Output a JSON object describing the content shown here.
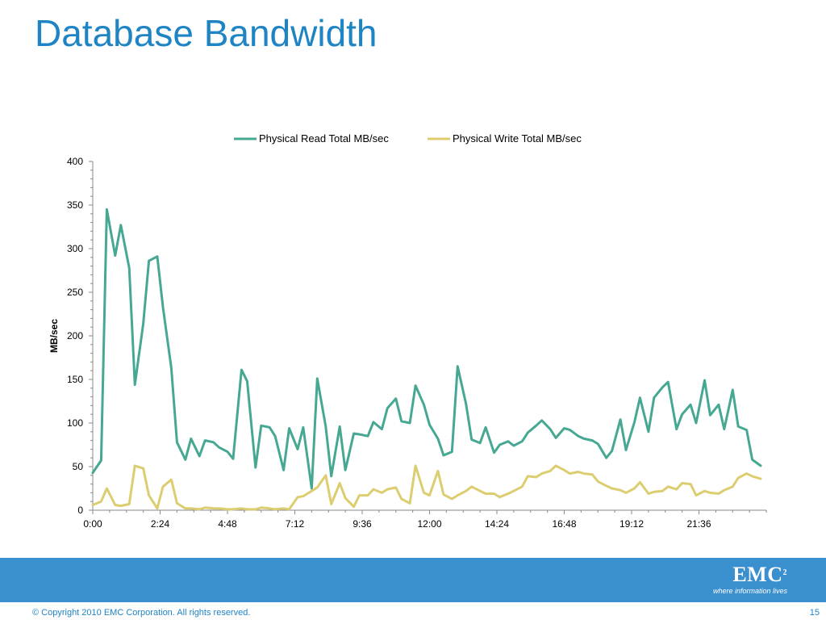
{
  "page": {
    "title": "Database Bandwidth",
    "copyright": "© Copyright 2010  EMC Corporation.  All rights reserved.",
    "page_number": "15"
  },
  "logo": {
    "brand": "EMC",
    "superscript": "2",
    "tagline": "where information lives"
  },
  "colors": {
    "title": "#1f84c4",
    "footer_band": "#3a8fcf",
    "read_series": "#46a892",
    "write_series": "#dccd70"
  },
  "chart_data": {
    "type": "line",
    "title": "",
    "xlabel": "",
    "ylabel": "MB/sec",
    "ylim": [
      0,
      400
    ],
    "yticks": [
      0,
      50,
      100,
      150,
      200,
      250,
      300,
      350,
      400
    ],
    "xticks": [
      "0:00",
      "2:24",
      "4:48",
      "7:12",
      "9:36",
      "12:00",
      "14:24",
      "16:48",
      "19:12",
      "21:36"
    ],
    "xlim": [
      "0:00",
      "24:00"
    ],
    "grid": false,
    "legend_position": "top",
    "series": [
      {
        "name": "Physical Read Total MB/sec",
        "color": "#46a892",
        "x": [
          "0:00",
          "0:18",
          "0:30",
          "0:48",
          "1:00",
          "1:18",
          "1:30",
          "1:48",
          "2:00",
          "2:18",
          "2:30",
          "2:48",
          "3:00",
          "3:18",
          "3:30",
          "3:48",
          "4:00",
          "4:18",
          "4:30",
          "4:48",
          "5:00",
          "5:18",
          "5:30",
          "5:48",
          "6:00",
          "6:18",
          "6:30",
          "6:48",
          "7:00",
          "7:18",
          "7:30",
          "7:48",
          "8:00",
          "8:18",
          "8:30",
          "8:48",
          "9:00",
          "9:18",
          "9:30",
          "9:48",
          "10:00",
          "10:18",
          "10:30",
          "10:48",
          "11:00",
          "11:18",
          "11:30",
          "11:48",
          "12:00",
          "12:18",
          "12:30",
          "12:48",
          "13:00",
          "13:18",
          "13:30",
          "13:48",
          "14:00",
          "14:18",
          "14:30",
          "14:48",
          "15:00",
          "15:18",
          "15:30",
          "15:48",
          "16:00",
          "16:18",
          "16:30",
          "16:48",
          "17:00",
          "17:18",
          "17:30",
          "17:48",
          "18:00",
          "18:18",
          "18:30",
          "18:48",
          "19:00",
          "19:18",
          "19:30",
          "19:48",
          "20:00",
          "20:18",
          "20:30",
          "20:48",
          "21:00",
          "21:18",
          "21:30",
          "21:48",
          "22:00",
          "22:18",
          "22:30",
          "22:48",
          "23:00",
          "23:18",
          "23:30",
          "23:48"
        ],
        "values": [
          43,
          57,
          345,
          292,
          327,
          278,
          144,
          214,
          286,
          291,
          233,
          163,
          78,
          58,
          82,
          62,
          80,
          78,
          72,
          67,
          59,
          161,
          148,
          49,
          97,
          95,
          85,
          46,
          94,
          70,
          95,
          25,
          151,
          96,
          39,
          96,
          46,
          88,
          87,
          85,
          101,
          93,
          117,
          128,
          102,
          100,
          143,
          121,
          98,
          82,
          63,
          67,
          165,
          122,
          81,
          77,
          95,
          66,
          75,
          79,
          74,
          79,
          89,
          97,
          103,
          93,
          83,
          94,
          92,
          85,
          82,
          80,
          76,
          60,
          68,
          104,
          69,
          101,
          129,
          90,
          129,
          141,
          147,
          93,
          110,
          121,
          100,
          149,
          109,
          121,
          93,
          138,
          96,
          92,
          58,
          51
        ]
      },
      {
        "name": "Physical Write Total MB/sec",
        "color": "#dccd70",
        "x": [
          "0:00",
          "0:18",
          "0:30",
          "0:48",
          "1:00",
          "1:18",
          "1:30",
          "1:48",
          "2:00",
          "2:18",
          "2:30",
          "2:48",
          "3:00",
          "3:18",
          "3:30",
          "3:48",
          "4:00",
          "4:18",
          "4:30",
          "4:48",
          "5:00",
          "5:18",
          "5:30",
          "5:48",
          "6:00",
          "6:18",
          "6:30",
          "6:48",
          "7:00",
          "7:18",
          "7:30",
          "7:48",
          "8:00",
          "8:18",
          "8:30",
          "8:48",
          "9:00",
          "9:18",
          "9:30",
          "9:48",
          "10:00",
          "10:18",
          "10:30",
          "10:48",
          "11:00",
          "11:18",
          "11:30",
          "11:48",
          "12:00",
          "12:18",
          "12:30",
          "12:48",
          "13:00",
          "13:18",
          "13:30",
          "13:48",
          "14:00",
          "14:18",
          "14:30",
          "14:48",
          "15:00",
          "15:18",
          "15:30",
          "15:48",
          "16:00",
          "16:18",
          "16:30",
          "16:48",
          "17:00",
          "17:18",
          "17:30",
          "17:48",
          "18:00",
          "18:18",
          "18:30",
          "18:48",
          "19:00",
          "19:18",
          "19:30",
          "19:48",
          "20:00",
          "20:18",
          "20:30",
          "20:48",
          "21:00",
          "21:18",
          "21:30",
          "21:48",
          "22:00",
          "22:18",
          "22:30",
          "22:48",
          "23:00",
          "23:18",
          "23:30",
          "23:48"
        ],
        "values": [
          6,
          10,
          25,
          6,
          5,
          7,
          51,
          48,
          17,
          2,
          27,
          35,
          8,
          2,
          2,
          1,
          3,
          2,
          2,
          1,
          1,
          2,
          1,
          1,
          3,
          2,
          1,
          2,
          1,
          15,
          16,
          22,
          26,
          40,
          7,
          31,
          14,
          4,
          17,
          17,
          24,
          20,
          24,
          26,
          13,
          8,
          51,
          20,
          17,
          45,
          18,
          13,
          17,
          22,
          27,
          22,
          19,
          19,
          15,
          19,
          22,
          27,
          39,
          38,
          42,
          45,
          51,
          46,
          42,
          44,
          42,
          41,
          33,
          28,
          25,
          23,
          20,
          25,
          32,
          19,
          21,
          22,
          27,
          24,
          31,
          30,
          17,
          22,
          20,
          19,
          23,
          27,
          37,
          42,
          39,
          36
        ]
      }
    ]
  }
}
